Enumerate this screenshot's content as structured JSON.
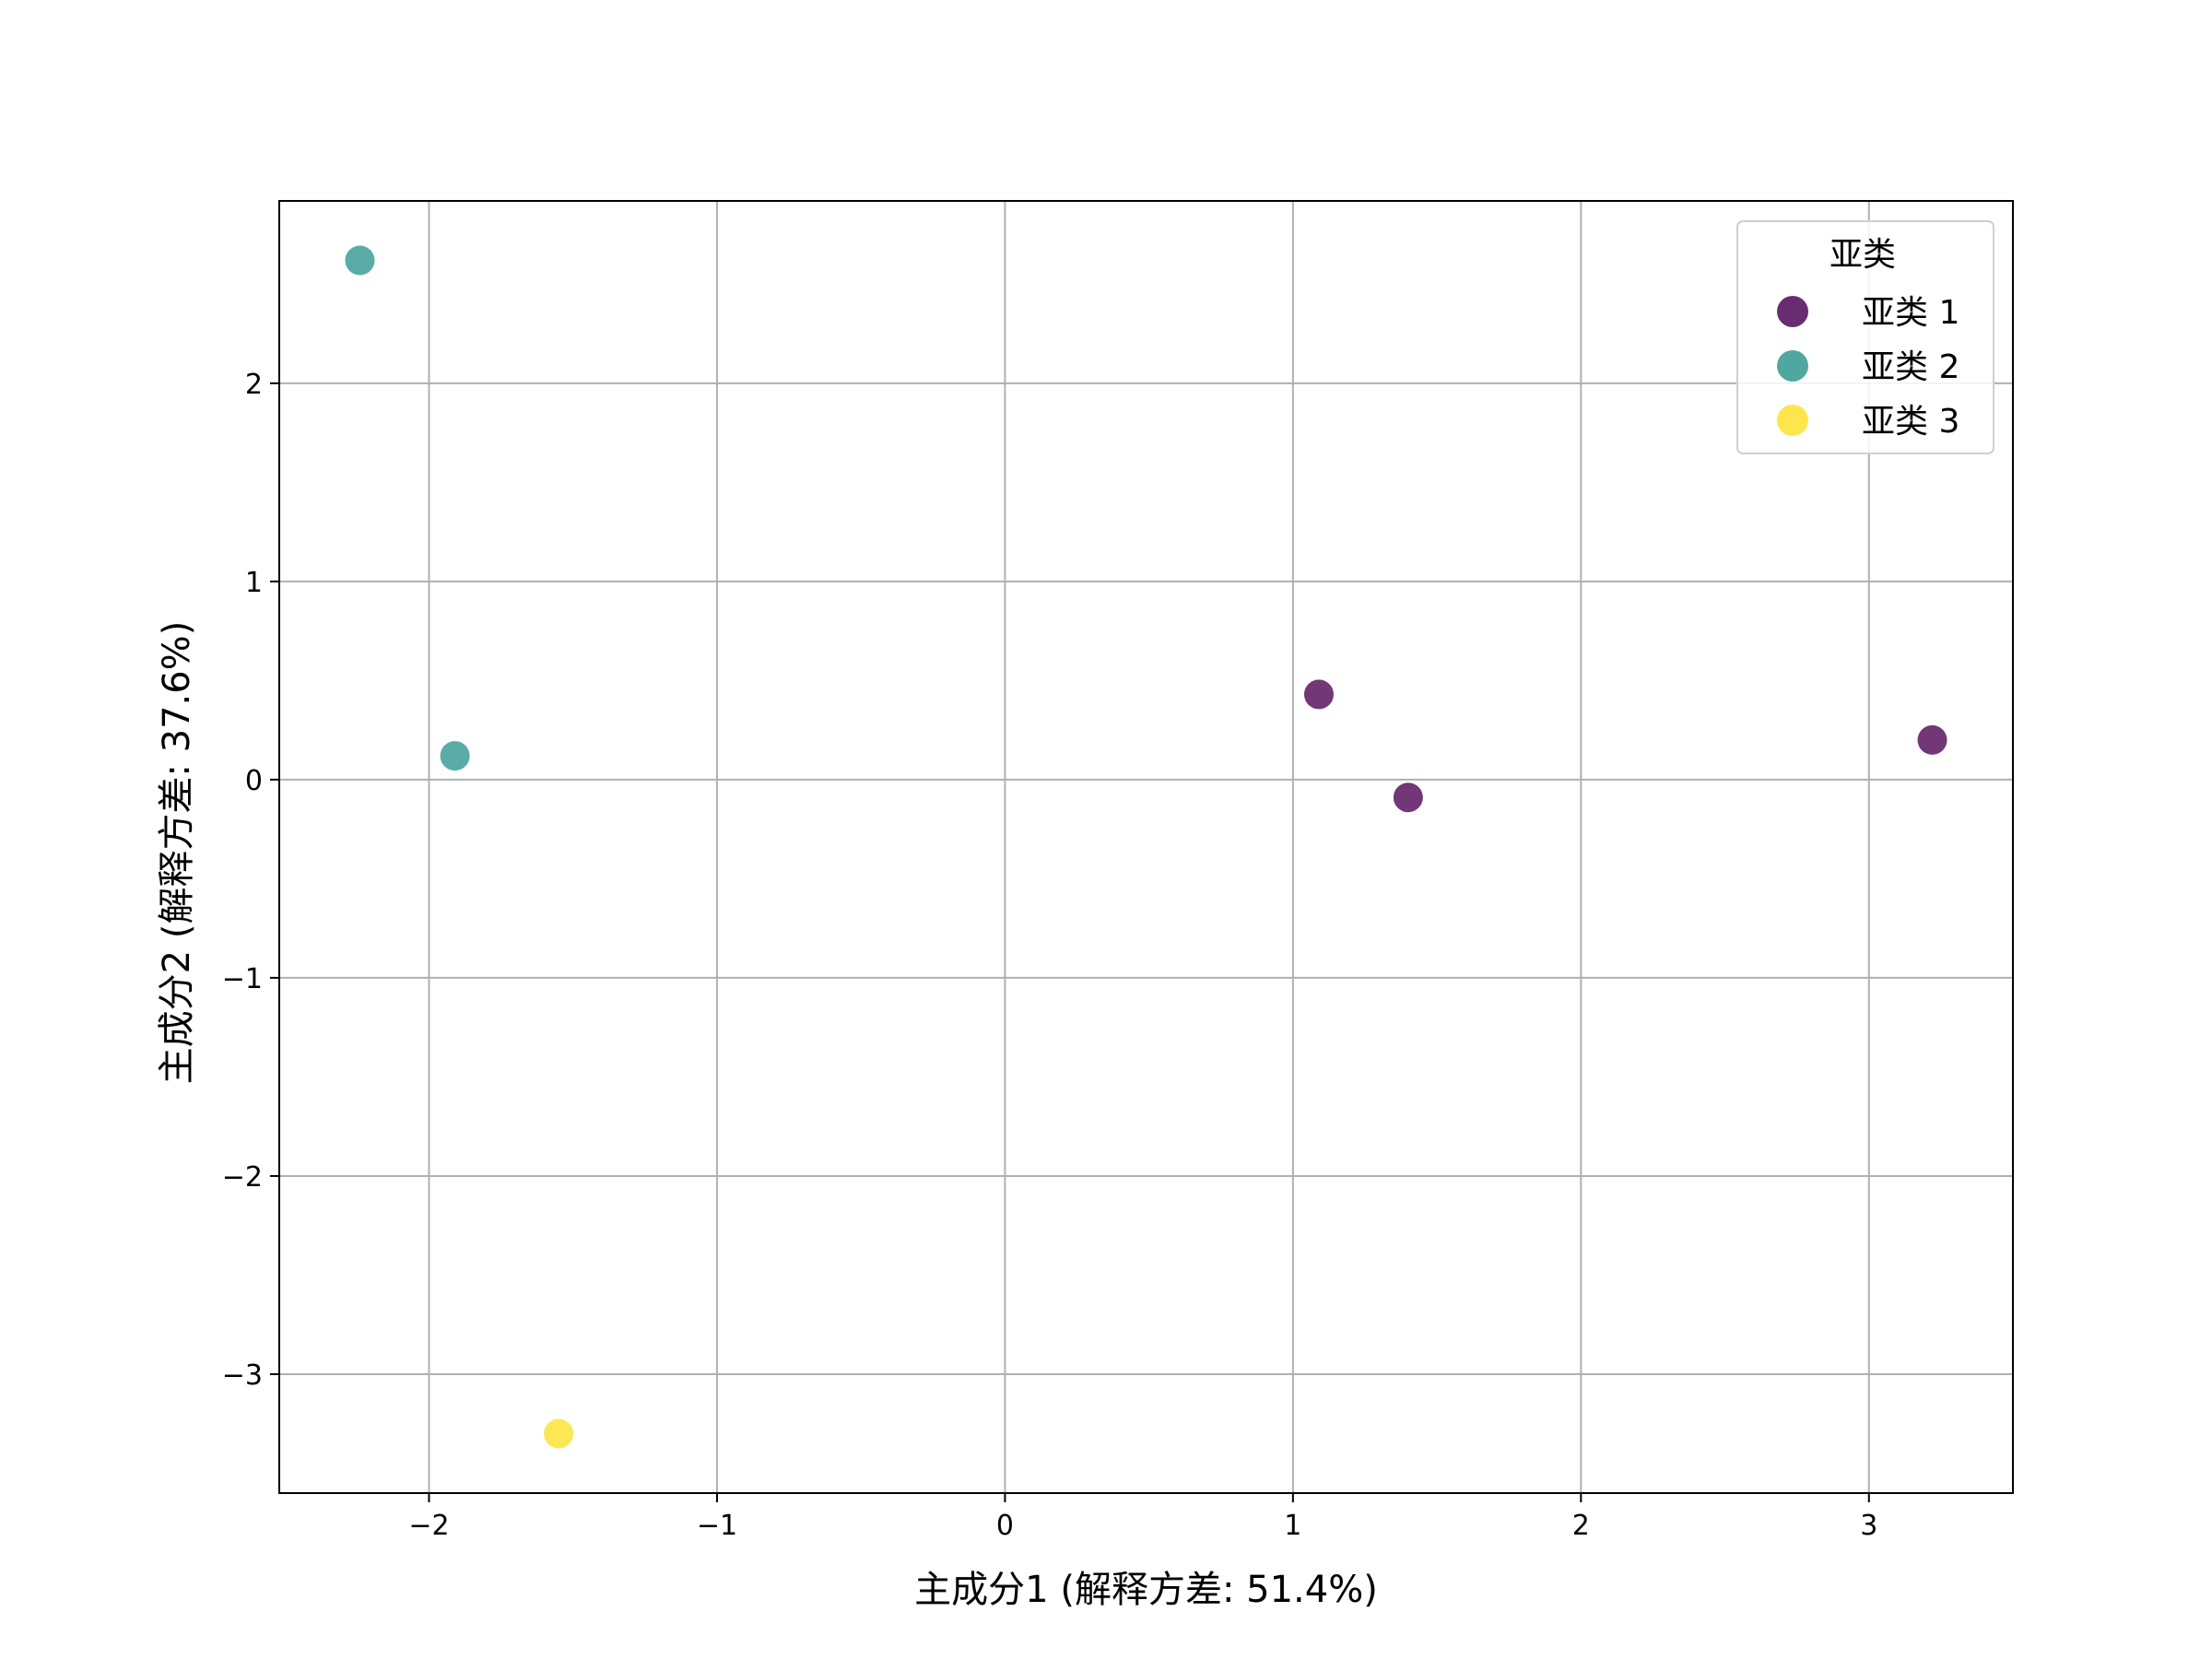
{
  "chart_data": {
    "type": "scatter",
    "title": "",
    "xlabel": "主成分1 (解释方差: 51.4%)",
    "ylabel": "主成分2 (解释方差: 37.6%)",
    "xlim": [
      -2.52,
      3.5
    ],
    "ylim": [
      -3.6,
      2.92
    ],
    "xticks": [
      -2,
      -1,
      0,
      1,
      2,
      3
    ],
    "yticks": [
      -3,
      -2,
      -1,
      0,
      1,
      2
    ],
    "xtick_labels": [
      "−2",
      "−1",
      "0",
      "1",
      "2",
      "3"
    ],
    "ytick_labels": [
      "−3",
      "−2",
      "−1",
      "0",
      "1",
      "2"
    ],
    "grid": true,
    "legend": {
      "title": "亚类",
      "placement": "top-right"
    },
    "series": [
      {
        "name": "亚类 1",
        "color": "#6a2c70",
        "points": [
          {
            "x": 1.09,
            "y": 0.43
          },
          {
            "x": 1.4,
            "y": -0.09
          },
          {
            "x": 3.22,
            "y": 0.2
          }
        ]
      },
      {
        "name": "亚类 2",
        "color": "#4fa8a0",
        "points": [
          {
            "x": -2.24,
            "y": 2.62
          },
          {
            "x": -1.91,
            "y": 0.12
          }
        ]
      },
      {
        "name": "亚类 3",
        "color": "#fde64b",
        "points": [
          {
            "x": -1.55,
            "y": -3.3
          }
        ]
      }
    ]
  }
}
